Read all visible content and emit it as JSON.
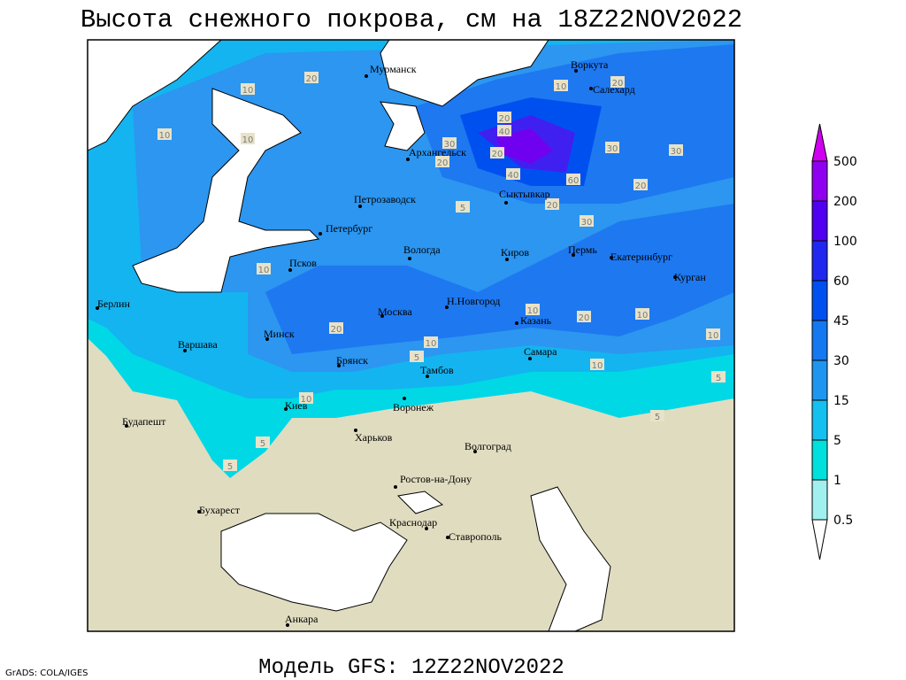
{
  "title": "Высота снежного покрова, см на 18Z22NOV2022",
  "footer": "Модель GFS: 12Z22NOV2022",
  "credit": "GrADS: COLA/IGES",
  "legend": {
    "levels": [
      0.5,
      1,
      5,
      15,
      30,
      45,
      60,
      100,
      200,
      500
    ],
    "colors": [
      "#ffffff",
      "#a0f0f0",
      "#00e0dc",
      "#14c0f0",
      "#1e96f0",
      "#1478f0",
      "#0050f0",
      "#2028f0",
      "#5000f0",
      "#9000f0",
      "#d000f0"
    ]
  },
  "cities": [
    "Мурманск",
    "Воркута",
    "Салехард",
    "Архангельск",
    "Сыктывкар",
    "Петрозаводск",
    "Петербург",
    "Вологда",
    "Киров",
    "Пермь",
    "Екатеринбург",
    "Курган",
    "Псков",
    "Берлин",
    "Н.Новгород",
    "Казань",
    "Москва",
    "Минск",
    "Варшава",
    "Самара",
    "Брянск",
    "Тамбов",
    "Киев",
    "Воронеж",
    "Будапешт",
    "Харьков",
    "Волгоград",
    "Ростов-на-Дону",
    "Бухарест",
    "Краснодар",
    "Ставрополь",
    "Анкара"
  ],
  "contour_labels": [
    10,
    20,
    10,
    10,
    20,
    40,
    30,
    20,
    20,
    40,
    60,
    30,
    30,
    20,
    5,
    20,
    30,
    10,
    20,
    10,
    5,
    10,
    20,
    10,
    10,
    10,
    5,
    5,
    10,
    5,
    5,
    20,
    10
  ]
}
